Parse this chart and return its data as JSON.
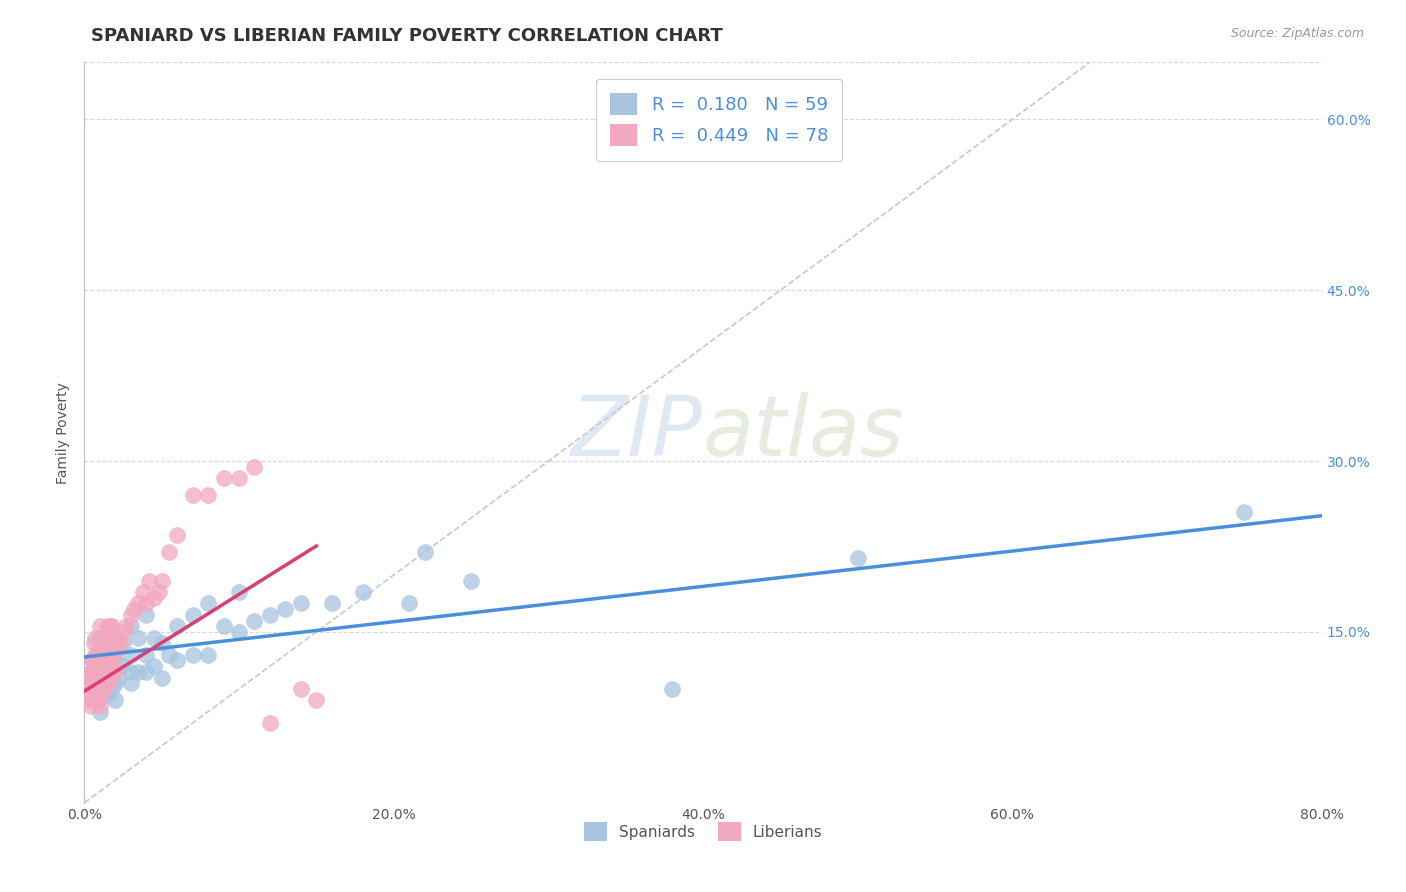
{
  "title": "SPANIARD VS LIBERIAN FAMILY POVERTY CORRELATION CHART",
  "source_text": "Source: ZipAtlas.com",
  "ylabel": "Family Poverty",
  "legend_labels": [
    "Spaniards",
    "Liberians"
  ],
  "r_spaniards": 0.18,
  "n_spaniards": 59,
  "r_liberians": 0.449,
  "n_liberians": 78,
  "spaniard_color": "#a8c4e0",
  "liberian_color": "#f2a8be",
  "spaniard_line_color": "#4a90d9",
  "liberian_line_color": "#d94070",
  "diagonal_line_color": "#c8c8c8",
  "background_color": "#ffffff",
  "xmin": 0.0,
  "xmax": 0.8,
  "ymin": 0.0,
  "ymax": 0.65,
  "x_ticks": [
    0.0,
    0.2,
    0.4,
    0.6,
    0.8
  ],
  "y_ticks_right": [
    0.15,
    0.3,
    0.45,
    0.6
  ],
  "watermark_zip": "ZIP",
  "watermark_atlas": "atlas",
  "title_fontsize": 13,
  "axis_label_fontsize": 10,
  "tick_fontsize": 10,
  "legend_fontsize": 13,
  "spaniard_scatter_x": [
    0.005,
    0.005,
    0.008,
    0.008,
    0.01,
    0.01,
    0.01,
    0.01,
    0.01,
    0.01,
    0.012,
    0.012,
    0.015,
    0.015,
    0.015,
    0.015,
    0.018,
    0.018,
    0.02,
    0.02,
    0.02,
    0.022,
    0.025,
    0.025,
    0.03,
    0.03,
    0.03,
    0.03,
    0.035,
    0.035,
    0.04,
    0.04,
    0.04,
    0.045,
    0.045,
    0.05,
    0.05,
    0.055,
    0.06,
    0.06,
    0.07,
    0.07,
    0.08,
    0.08,
    0.09,
    0.1,
    0.1,
    0.11,
    0.12,
    0.13,
    0.14,
    0.16,
    0.18,
    0.21,
    0.22,
    0.25,
    0.38,
    0.5,
    0.75
  ],
  "spaniard_scatter_y": [
    0.115,
    0.125,
    0.1,
    0.13,
    0.08,
    0.1,
    0.115,
    0.125,
    0.135,
    0.145,
    0.095,
    0.115,
    0.095,
    0.105,
    0.12,
    0.135,
    0.1,
    0.12,
    0.09,
    0.105,
    0.125,
    0.11,
    0.12,
    0.14,
    0.105,
    0.115,
    0.13,
    0.155,
    0.115,
    0.145,
    0.115,
    0.13,
    0.165,
    0.12,
    0.145,
    0.11,
    0.14,
    0.13,
    0.125,
    0.155,
    0.13,
    0.165,
    0.13,
    0.175,
    0.155,
    0.15,
    0.185,
    0.16,
    0.165,
    0.17,
    0.175,
    0.175,
    0.185,
    0.175,
    0.22,
    0.195,
    0.1,
    0.215,
    0.255
  ],
  "liberian_scatter_x": [
    0.002,
    0.003,
    0.003,
    0.004,
    0.004,
    0.004,
    0.005,
    0.005,
    0.005,
    0.005,
    0.006,
    0.006,
    0.006,
    0.006,
    0.007,
    0.007,
    0.007,
    0.007,
    0.008,
    0.008,
    0.008,
    0.009,
    0.009,
    0.009,
    0.01,
    0.01,
    0.01,
    0.01,
    0.01,
    0.01,
    0.011,
    0.011,
    0.011,
    0.012,
    0.012,
    0.012,
    0.013,
    0.013,
    0.013,
    0.014,
    0.014,
    0.015,
    0.015,
    0.015,
    0.016,
    0.016,
    0.016,
    0.017,
    0.017,
    0.018,
    0.018,
    0.019,
    0.02,
    0.02,
    0.021,
    0.022,
    0.023,
    0.025,
    0.027,
    0.03,
    0.032,
    0.035,
    0.038,
    0.04,
    0.042,
    0.045,
    0.048,
    0.05,
    0.055,
    0.06,
    0.07,
    0.08,
    0.09,
    0.1,
    0.11,
    0.12,
    0.14,
    0.15
  ],
  "liberian_scatter_y": [
    0.09,
    0.1,
    0.11,
    0.085,
    0.1,
    0.115,
    0.09,
    0.105,
    0.115,
    0.125,
    0.095,
    0.11,
    0.125,
    0.14,
    0.1,
    0.115,
    0.13,
    0.145,
    0.09,
    0.105,
    0.12,
    0.09,
    0.11,
    0.13,
    0.085,
    0.1,
    0.115,
    0.125,
    0.135,
    0.155,
    0.095,
    0.115,
    0.135,
    0.1,
    0.12,
    0.145,
    0.105,
    0.12,
    0.14,
    0.11,
    0.13,
    0.105,
    0.125,
    0.155,
    0.11,
    0.13,
    0.155,
    0.115,
    0.145,
    0.12,
    0.155,
    0.13,
    0.115,
    0.14,
    0.135,
    0.145,
    0.14,
    0.15,
    0.155,
    0.165,
    0.17,
    0.175,
    0.185,
    0.175,
    0.195,
    0.18,
    0.185,
    0.195,
    0.22,
    0.235,
    0.27,
    0.27,
    0.285,
    0.285,
    0.295,
    0.07,
    0.1,
    0.09
  ],
  "spaniard_line_x": [
    0.0,
    0.8
  ],
  "spaniard_line_slope": 0.155,
  "spaniard_line_intercept": 0.128,
  "liberian_line_x": [
    0.0,
    0.15
  ],
  "liberian_line_slope": 0.85,
  "liberian_line_intercept": 0.098
}
